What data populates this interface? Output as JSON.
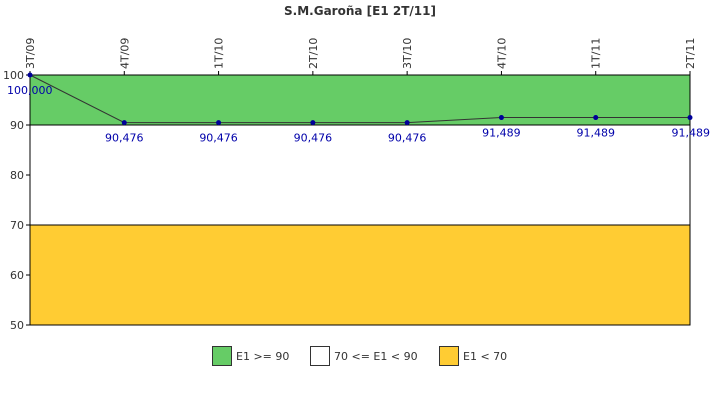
{
  "chart_data": {
    "type": "line",
    "title": "S.M.Garoña [E1 2T/11]",
    "xlabel": "",
    "ylabel": "",
    "categories": [
      "3T/09",
      "4T/09",
      "1T/10",
      "2T/10",
      "3T/10",
      "4T/10",
      "1T/11",
      "2T/11"
    ],
    "series": [
      {
        "values": [
          100.0,
          90.476,
          90.476,
          90.476,
          90.476,
          91.489,
          91.489,
          91.489
        ],
        "labels": [
          "100,000",
          "90,476",
          "90,476",
          "90,476",
          "90,476",
          "91,489",
          "91,489",
          "91,489"
        ],
        "color": "#000099",
        "line_color": "#333333"
      }
    ],
    "ylim": [
      50,
      100
    ],
    "yticks": [
      50,
      60,
      70,
      80,
      90,
      100
    ],
    "grid": false,
    "bands": [
      {
        "from": 90,
        "to": 100,
        "color": "#66cc66",
        "label": "E1 >= 90"
      },
      {
        "from": 70,
        "to": 90,
        "color": "#ffffff",
        "label": "70 <= E1 < 90"
      },
      {
        "from": 50,
        "to": 70,
        "color": "#ffcc33",
        "label": "E1 < 70"
      }
    ],
    "legend_position": "bottom"
  }
}
